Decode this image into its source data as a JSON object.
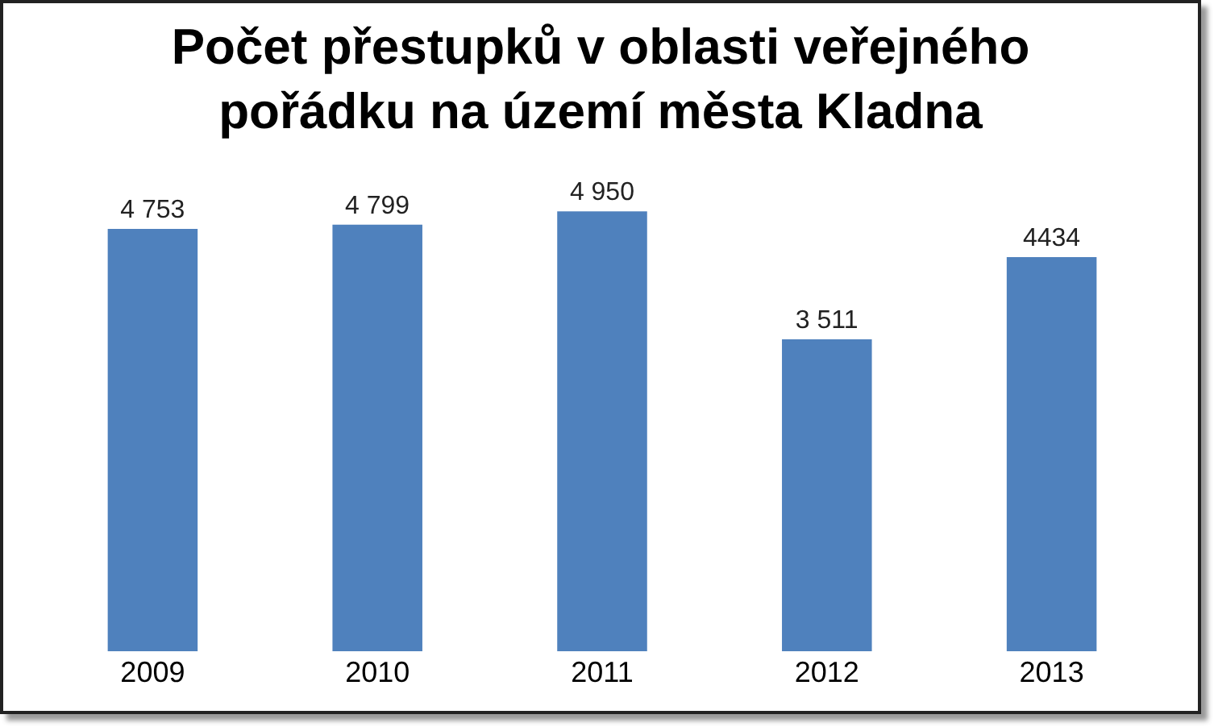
{
  "chart_data": {
    "type": "bar",
    "title": "Počet přestupků v oblasti veřejného pořádku na území města Kladna",
    "categories": [
      "2009",
      "2010",
      "2011",
      "2012",
      "2013"
    ],
    "values": [
      4753,
      4799,
      4950,
      3511,
      4434
    ],
    "value_labels": [
      "4 753",
      "4 799",
      "4 950",
      "3 511",
      "4434"
    ],
    "color": "#4f81bd"
  }
}
